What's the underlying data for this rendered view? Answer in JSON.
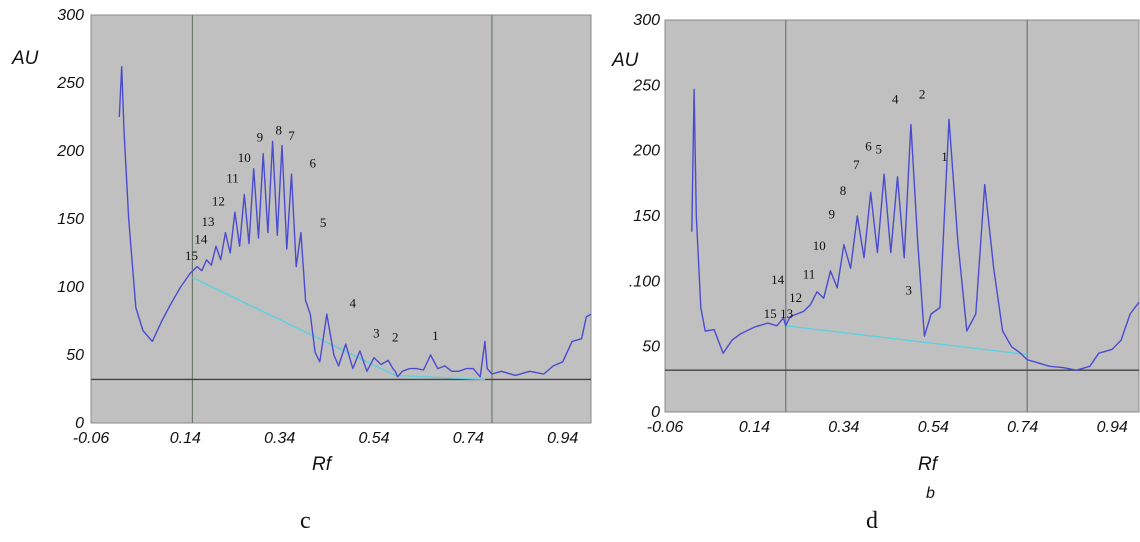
{
  "chart_data": [
    {
      "type": "line",
      "caption": "c",
      "xlabel": "Rf",
      "ylabel": "AU",
      "xlim": [
        -0.06,
        1.0
      ],
      "ylim": [
        0,
        300
      ],
      "xticks": [
        -0.06,
        0.14,
        0.34,
        0.54,
        0.74,
        0.94
      ],
      "xtick_labels": [
        "-0.06",
        "0.14",
        "0.34",
        "0.54",
        "0.74",
        "0.94"
      ],
      "yticks": [
        0,
        50,
        100,
        150,
        200,
        250,
        300
      ],
      "ytick_labels": [
        "0",
        "50",
        "100",
        "150",
        "200",
        "250",
        "300"
      ],
      "grid": false,
      "vertical_markers": [
        0.155,
        0.79
      ],
      "horizontal_line": 32,
      "colors": {
        "background": "#c0c0c0",
        "trace": "#4b4bd0",
        "baseline": "#5fd0e0",
        "markers": "#6e7a6e",
        "hline": "#444444"
      },
      "baseline_segments": [
        {
          "x": [
            0.155,
            0.585
          ],
          "y": [
            107,
            35
          ]
        },
        {
          "x": [
            0.585,
            0.775
          ],
          "y": [
            35,
            32
          ]
        }
      ],
      "trace": {
        "x": [
          0.0,
          0.005,
          0.01,
          0.02,
          0.035,
          0.05,
          0.07,
          0.09,
          0.11,
          0.13,
          0.15,
          0.165,
          0.175,
          0.185,
          0.195,
          0.205,
          0.215,
          0.225,
          0.235,
          0.245,
          0.255,
          0.265,
          0.275,
          0.285,
          0.295,
          0.305,
          0.315,
          0.325,
          0.335,
          0.345,
          0.355,
          0.365,
          0.375,
          0.385,
          0.395,
          0.405,
          0.415,
          0.425,
          0.44,
          0.455,
          0.465,
          0.48,
          0.495,
          0.51,
          0.525,
          0.54,
          0.555,
          0.57,
          0.58,
          0.585,
          0.59,
          0.6,
          0.615,
          0.63,
          0.645,
          0.66,
          0.675,
          0.69,
          0.705,
          0.72,
          0.735,
          0.75,
          0.765,
          0.775,
          0.78,
          0.79,
          0.81,
          0.84,
          0.87,
          0.9,
          0.92,
          0.94,
          0.96,
          0.98,
          0.99,
          1.0
        ],
        "y": [
          225,
          262,
          215,
          150,
          85,
          68,
          60,
          75,
          88,
          100,
          110,
          115,
          112,
          120,
          116,
          130,
          120,
          140,
          125,
          155,
          130,
          168,
          132,
          187,
          136,
          198,
          140,
          207,
          138,
          204,
          128,
          183,
          115,
          140,
          90,
          80,
          52,
          45,
          80,
          50,
          42,
          58,
          40,
          53,
          38,
          48,
          43,
          46,
          40,
          38,
          34,
          38,
          40,
          40,
          39,
          50,
          40,
          42,
          38,
          38,
          40,
          40,
          34,
          60,
          40,
          36,
          38,
          35,
          38,
          36,
          42,
          45,
          60,
          62,
          78,
          80
        ]
      },
      "peak_labels": [
        {
          "label": "15",
          "x": 0.153,
          "y": 120
        },
        {
          "label": "14",
          "x": 0.173,
          "y": 132
        },
        {
          "label": "13",
          "x": 0.188,
          "y": 145
        },
        {
          "label": "12",
          "x": 0.21,
          "y": 160
        },
        {
          "label": "11",
          "x": 0.24,
          "y": 177
        },
        {
          "label": "10",
          "x": 0.265,
          "y": 192
        },
        {
          "label": "9",
          "x": 0.298,
          "y": 207
        },
        {
          "label": "8",
          "x": 0.338,
          "y": 212
        },
        {
          "label": "7",
          "x": 0.365,
          "y": 208
        },
        {
          "label": "6",
          "x": 0.41,
          "y": 188
        },
        {
          "label": "5",
          "x": 0.432,
          "y": 144
        },
        {
          "label": "4",
          "x": 0.495,
          "y": 85
        },
        {
          "label": "3",
          "x": 0.545,
          "y": 63
        },
        {
          "label": "2",
          "x": 0.585,
          "y": 60
        },
        {
          "label": "1",
          "x": 0.67,
          "y": 61
        }
      ]
    },
    {
      "type": "line",
      "caption": "d",
      "xlabel": "Rf",
      "ylabel": "AU",
      "sub_label": "b",
      "xlim": [
        -0.06,
        1.0
      ],
      "ylim": [
        0,
        300
      ],
      "xticks": [
        -0.06,
        0.14,
        0.34,
        0.54,
        0.74,
        0.94
      ],
      "xtick_labels": [
        "-0.06",
        "0.14",
        "0.34",
        "0.54",
        "0.74",
        "0.94"
      ],
      "yticks": [
        0,
        50,
        100,
        150,
        200,
        250,
        300
      ],
      "ytick_labels": [
        "0",
        "50",
        ".100",
        "150",
        "200",
        "250",
        "300"
      ],
      "grid": false,
      "vertical_markers": [
        0.21,
        0.75
      ],
      "horizontal_line": 32,
      "colors": {
        "background": "#c0c0c0",
        "trace": "#4b4bd0",
        "baseline": "#5fd0e0",
        "markers": "#6e7a6e",
        "hline": "#444444"
      },
      "baseline_segments": [
        {
          "x": [
            0.21,
            0.75
          ],
          "y": [
            66,
            44
          ]
        }
      ],
      "trace": {
        "x": [
          0.0,
          0.005,
          0.01,
          0.02,
          0.03,
          0.05,
          0.07,
          0.09,
          0.11,
          0.14,
          0.17,
          0.19,
          0.205,
          0.21,
          0.22,
          0.235,
          0.25,
          0.265,
          0.28,
          0.295,
          0.31,
          0.325,
          0.34,
          0.355,
          0.37,
          0.385,
          0.4,
          0.415,
          0.43,
          0.445,
          0.46,
          0.475,
          0.49,
          0.505,
          0.52,
          0.535,
          0.555,
          0.575,
          0.595,
          0.615,
          0.635,
          0.655,
          0.675,
          0.695,
          0.715,
          0.735,
          0.75,
          0.77,
          0.8,
          0.83,
          0.86,
          0.89,
          0.91,
          0.94,
          0.96,
          0.98,
          1.0
        ],
        "y": [
          138,
          247,
          150,
          80,
          62,
          63,
          45,
          55,
          60,
          65,
          68,
          66,
          72,
          66,
          73,
          75,
          77,
          82,
          92,
          87,
          108,
          95,
          128,
          110,
          150,
          118,
          168,
          122,
          182,
          122,
          180,
          118,
          220,
          130,
          58,
          75,
          80,
          224,
          130,
          62,
          75,
          174,
          110,
          62,
          50,
          45,
          40,
          38,
          35,
          34,
          32,
          35,
          45,
          48,
          55,
          75,
          84
        ]
      },
      "peak_labels": [
        {
          "label": "15",
          "x": 0.175,
          "y": 72
        },
        {
          "label": "14",
          "x": 0.192,
          "y": 98
        },
        {
          "label": "13",
          "x": 0.212,
          "y": 72
        },
        {
          "label": "12",
          "x": 0.232,
          "y": 84
        },
        {
          "label": "11",
          "x": 0.262,
          "y": 102
        },
        {
          "label": "10",
          "x": 0.285,
          "y": 124
        },
        {
          "label": "9",
          "x": 0.313,
          "y": 148
        },
        {
          "label": "8",
          "x": 0.338,
          "y": 166
        },
        {
          "label": "7",
          "x": 0.368,
          "y": 186
        },
        {
          "label": "6",
          "x": 0.395,
          "y": 200
        },
        {
          "label": "5",
          "x": 0.418,
          "y": 198
        },
        {
          "label": "4",
          "x": 0.455,
          "y": 236
        },
        {
          "label": "3",
          "x": 0.485,
          "y": 90
        },
        {
          "label": "2",
          "x": 0.515,
          "y": 240
        },
        {
          "label": "1",
          "x": 0.565,
          "y": 192
        }
      ]
    }
  ]
}
